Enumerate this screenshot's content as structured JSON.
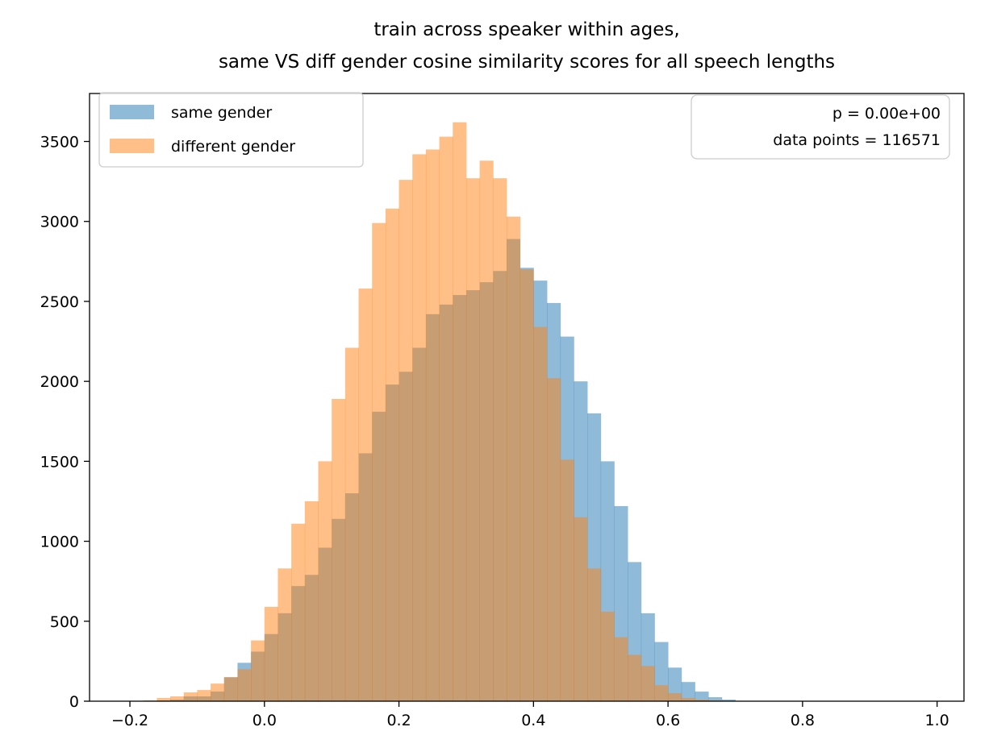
{
  "chart_data": {
    "type": "bar",
    "title": "train across speaker within ages,",
    "subtitle": "same VS diff gender cosine similarity scores for all speech lengths",
    "xlabel": "",
    "ylabel": "",
    "xlim": [
      -0.26,
      1.04
    ],
    "ylim": [
      0,
      3800
    ],
    "xticks": [
      -0.2,
      0.0,
      0.2,
      0.4,
      0.6,
      0.8,
      1.0
    ],
    "xtick_labels": [
      "−0.2",
      "0.0",
      "0.2",
      "0.4",
      "0.6",
      "0.8",
      "1.0"
    ],
    "yticks": [
      0,
      500,
      1000,
      1500,
      2000,
      2500,
      3000,
      3500
    ],
    "ytick_labels": [
      "0",
      "500",
      "1000",
      "1500",
      "2000",
      "2500",
      "3000",
      "3500"
    ],
    "grid": false,
    "legend_position": "top-left",
    "bin_start": -0.18,
    "bin_width": 0.02,
    "series": [
      {
        "name": "same gender",
        "color": "#1f77b4",
        "alpha": 0.5,
        "values": [
          0,
          5,
          10,
          30,
          30,
          60,
          150,
          240,
          310,
          420,
          550,
          720,
          790,
          960,
          1140,
          1300,
          1550,
          1810,
          1980,
          2060,
          2210,
          2420,
          2480,
          2540,
          2570,
          2620,
          2690,
          2890,
          2710,
          2630,
          2490,
          2280,
          2000,
          1800,
          1500,
          1220,
          870,
          550,
          370,
          210,
          120,
          60,
          25,
          10,
          0,
          0
        ]
      },
      {
        "name": "different gender",
        "color": "#ff7f0e",
        "alpha": 0.5,
        "values": [
          5,
          20,
          30,
          55,
          70,
          110,
          150,
          200,
          380,
          590,
          830,
          1110,
          1250,
          1500,
          1890,
          2210,
          2580,
          2990,
          3080,
          3260,
          3420,
          3450,
          3530,
          3620,
          3270,
          3380,
          3270,
          3030,
          2700,
          2340,
          2020,
          1510,
          1150,
          830,
          560,
          400,
          290,
          220,
          100,
          50,
          20,
          10,
          5,
          0,
          0,
          0
        ]
      }
    ],
    "annotation": {
      "lines": [
        "p = 0.00e+00",
        "data points = 116571"
      ],
      "position": "top-right"
    }
  }
}
